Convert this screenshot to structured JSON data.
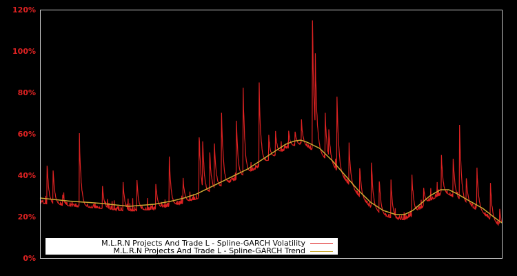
{
  "chart_data": {
    "type": "line",
    "title": "",
    "xlabel": "",
    "ylabel": "",
    "ylim": [
      0,
      120
    ],
    "y_ticks": [
      "0%",
      "20%",
      "40%",
      "60%",
      "80%",
      "100%",
      "120%"
    ],
    "y_tick_values": [
      0,
      20,
      40,
      60,
      80,
      100,
      120
    ],
    "grid": false,
    "background": "#000000",
    "tick_label_color": "#dd2222",
    "frame_color": "#cccccc",
    "legend_position": "lower left",
    "x_range": [
      0,
      100
    ],
    "series": [
      {
        "name": "M.L.R.N Projects And Trade L - Spline-GARCH Volatility",
        "color": "#dd2222",
        "baseline_points": [
          [
            0,
            27
          ],
          [
            5,
            26
          ],
          [
            10,
            25.5
          ],
          [
            15,
            25
          ],
          [
            20,
            24
          ],
          [
            25,
            23.5
          ],
          [
            30,
            24
          ],
          [
            35,
            26
          ],
          [
            40,
            30
          ],
          [
            45,
            35
          ],
          [
            50,
            41
          ],
          [
            55,
            47
          ],
          [
            60,
            51
          ],
          [
            62,
            52
          ],
          [
            65,
            49
          ],
          [
            70,
            37
          ],
          [
            75,
            26
          ],
          [
            80,
            21
          ],
          [
            83,
            20
          ],
          [
            87,
            23
          ],
          [
            90,
            29
          ],
          [
            93,
            31
          ],
          [
            96,
            28
          ],
          [
            100,
            16
          ]
        ],
        "spikes": [
          [
            1.5,
            47
          ],
          [
            2.8,
            44
          ],
          [
            4.9,
            31
          ],
          [
            8.5,
            62
          ],
          [
            13.5,
            35
          ],
          [
            18,
            37
          ],
          [
            21,
            38
          ],
          [
            25,
            37
          ],
          [
            28,
            51
          ],
          [
            31,
            39
          ],
          [
            34.4,
            63
          ],
          [
            35.2,
            60
          ],
          [
            36.7,
            52
          ],
          [
            37.7,
            59
          ],
          [
            39.3,
            74
          ],
          [
            42.5,
            67
          ],
          [
            44,
            84
          ],
          [
            47.4,
            86
          ],
          [
            49.5,
            60
          ],
          [
            51,
            62
          ],
          [
            53.8,
            62
          ],
          [
            55.2,
            62
          ],
          [
            56.6,
            67
          ],
          [
            59,
            117
          ],
          [
            59.6,
            100
          ],
          [
            61.7,
            71
          ],
          [
            62.5,
            64
          ],
          [
            64.3,
            80
          ],
          [
            66.9,
            56
          ],
          [
            69.2,
            45
          ],
          [
            71.7,
            48
          ],
          [
            73.4,
            39
          ],
          [
            76,
            38
          ],
          [
            80.5,
            42
          ],
          [
            83,
            35
          ],
          [
            86.9,
            50
          ],
          [
            89.4,
            50
          ],
          [
            90.8,
            67
          ],
          [
            92.3,
            40
          ],
          [
            94.6,
            45
          ],
          [
            97.5,
            37
          ],
          [
            99.5,
            24
          ]
        ]
      },
      {
        "name": "M.L.R.N Projects And Trade L - Spline-GARCH Trend",
        "color": "#ccaa33",
        "points": [
          [
            0,
            29
          ],
          [
            7,
            27.5
          ],
          [
            14,
            26.5
          ],
          [
            21,
            25
          ],
          [
            27,
            26
          ],
          [
            31,
            27.5
          ],
          [
            34,
            29
          ],
          [
            37,
            31
          ],
          [
            40,
            34
          ],
          [
            43,
            37
          ],
          [
            46,
            40
          ],
          [
            49,
            43
          ],
          [
            52,
            47
          ],
          [
            55,
            51
          ],
          [
            58,
            55
          ],
          [
            60,
            56.5
          ],
          [
            61.5,
            57
          ],
          [
            63,
            56
          ],
          [
            66,
            53
          ],
          [
            69,
            47
          ],
          [
            72,
            40
          ],
          [
            75,
            33
          ],
          [
            78,
            27
          ],
          [
            81,
            23
          ],
          [
            84,
            21
          ],
          [
            86,
            21
          ],
          [
            88,
            23
          ],
          [
            90,
            26.5
          ],
          [
            92,
            30
          ],
          [
            94.5,
            33
          ],
          [
            96.5,
            33
          ],
          [
            98.5,
            31
          ],
          [
            101,
            28
          ],
          [
            104.5,
            24
          ],
          [
            107,
            20
          ],
          [
            109,
            17
          ]
        ]
      }
    ]
  },
  "legend": {
    "items": [
      {
        "label": "M.L.R.N Projects And Trade L - Spline-GARCH Volatility",
        "color": "#dd2222"
      },
      {
        "label": "M.L.R.N Projects And Trade L - Spline-GARCH Trend",
        "color": "#ccaa33"
      }
    ]
  },
  "axis": {
    "y_labels": [
      "0%",
      "20%",
      "40%",
      "60%",
      "80%",
      "100%",
      "120%"
    ]
  }
}
